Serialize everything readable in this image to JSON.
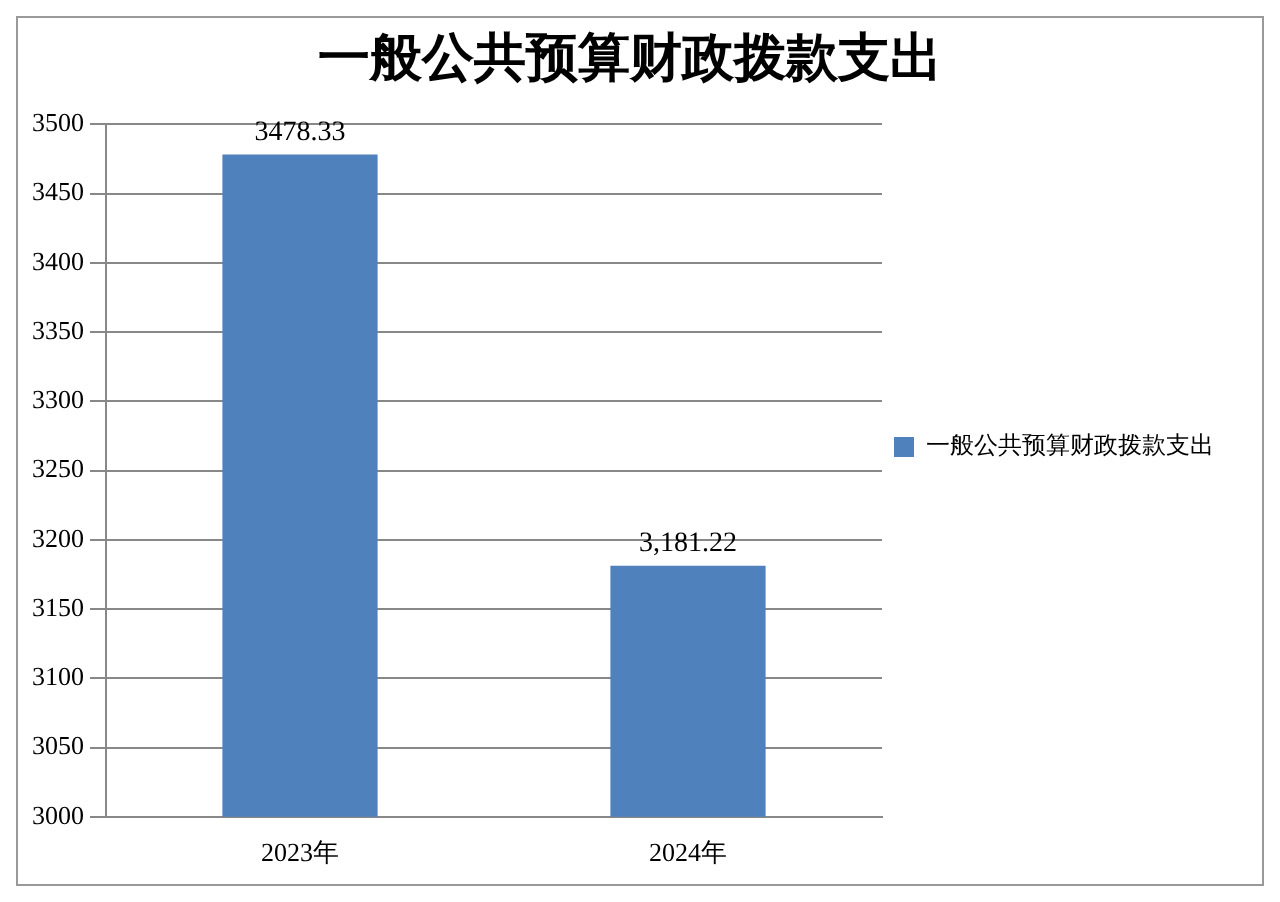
{
  "chart_data": {
    "type": "bar",
    "title": "一般公共预算财政拨款支出",
    "categories": [
      "2023年",
      "2024年"
    ],
    "series": [
      {
        "name": "一般公共预算财政拨款支出",
        "color": "#4f81bd",
        "values": [
          3478.33,
          3181.22
        ],
        "value_labels": [
          "3478.33",
          "3,181.22"
        ]
      }
    ],
    "ylim": [
      3000,
      3500
    ],
    "yticks": [
      3000,
      3050,
      3100,
      3150,
      3200,
      3250,
      3300,
      3350,
      3400,
      3450,
      3500
    ],
    "grid": "y",
    "legend": "right"
  }
}
